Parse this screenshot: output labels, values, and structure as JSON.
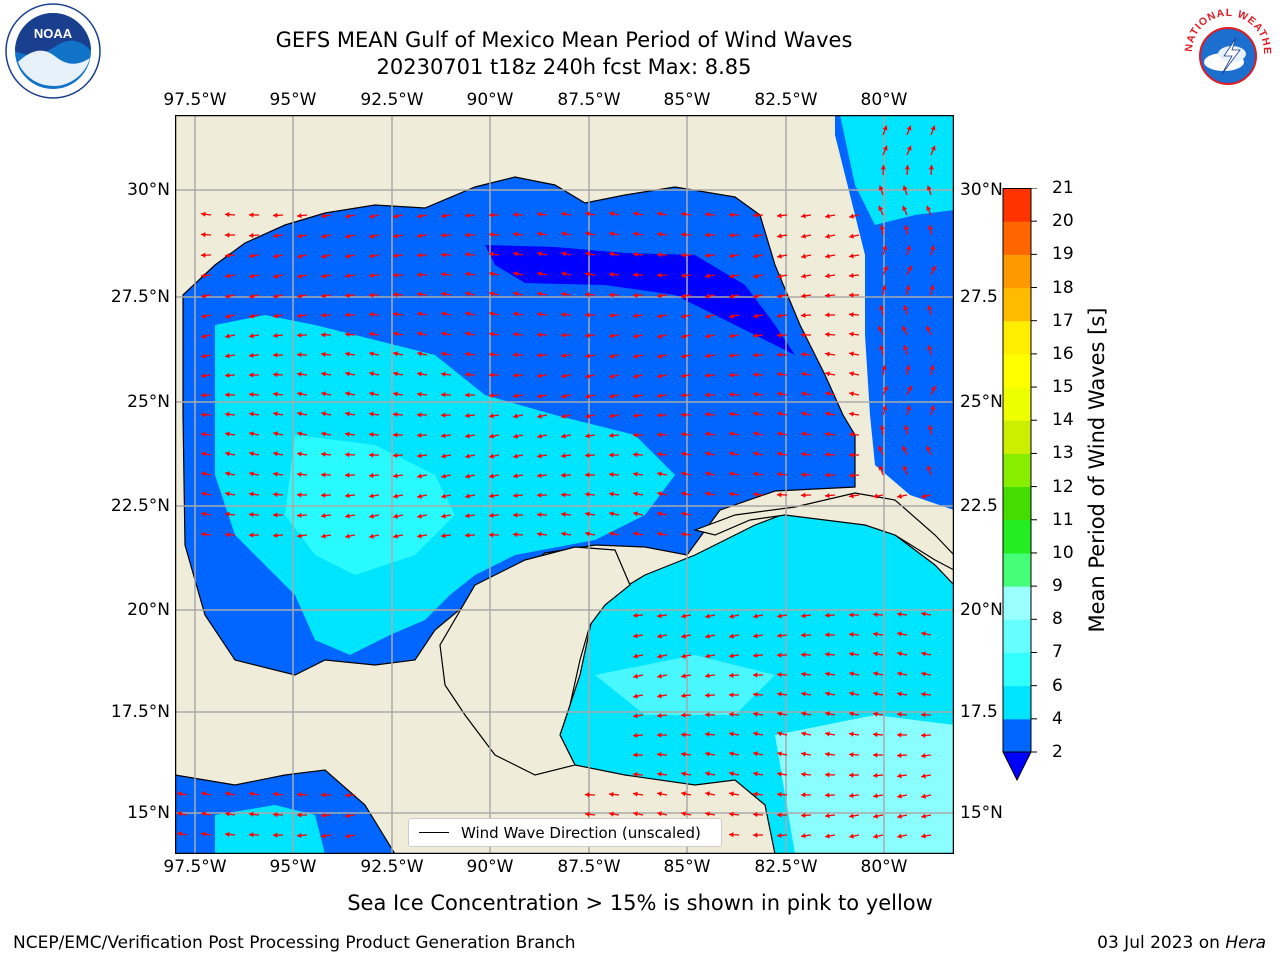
{
  "title": {
    "line1": "GEFS MEAN Gulf of Mexico Mean Period of Wind Waves",
    "line2": "20230701 t18z 240h fcst   Max: 8.85"
  },
  "map": {
    "lon_ticks": [
      "97.5°W",
      "95°W",
      "92.5°W",
      "90°W",
      "87.5°W",
      "85°W",
      "82.5°W",
      "80°W"
    ],
    "lat_ticks_left": [
      "30°N",
      "27.5°N",
      "25°N",
      "22.5°N",
      "20°N",
      "17.5°N",
      "15°N"
    ],
    "lat_ticks_right": [
      "30°N",
      "27.5",
      "25°N",
      "22.5",
      "20°N",
      "17.5",
      "15°N"
    ],
    "legend_label": "Wind Wave Direction (unscaled)",
    "land_color": "#efedda",
    "arrow_color": "#ff0000"
  },
  "colorbar": {
    "label": "Mean Period of Wind Waves [s]",
    "ticks": [
      "2",
      "4",
      "6",
      "7",
      "8",
      "9",
      "10",
      "11",
      "12",
      "13",
      "14",
      "15",
      "16",
      "17",
      "18",
      "19",
      "20",
      "21"
    ],
    "colors": [
      "#0066ff",
      "#00e5ff",
      "#33ffff",
      "#66ffff",
      "#99ffff",
      "#44ff77",
      "#22ee22",
      "#44dd00",
      "#88ee00",
      "#ccee00",
      "#eeff00",
      "#ffff00",
      "#ffee00",
      "#ffbb00",
      "#ff9900",
      "#ff6600",
      "#ff3300"
    ],
    "extend_color": "#0000ff"
  },
  "caption": "Sea Ice Concentration > 15% is shown in pink to yellow",
  "footer": {
    "left": "NCEP/EMC/Verification Post Processing Product Generation Branch",
    "right_prefix": "03 Jul 2023 on ",
    "right_host": "Hera"
  },
  "logos": {
    "noaa": "NOAA",
    "nws": "NATIONAL WEATHER SERVICE"
  }
}
